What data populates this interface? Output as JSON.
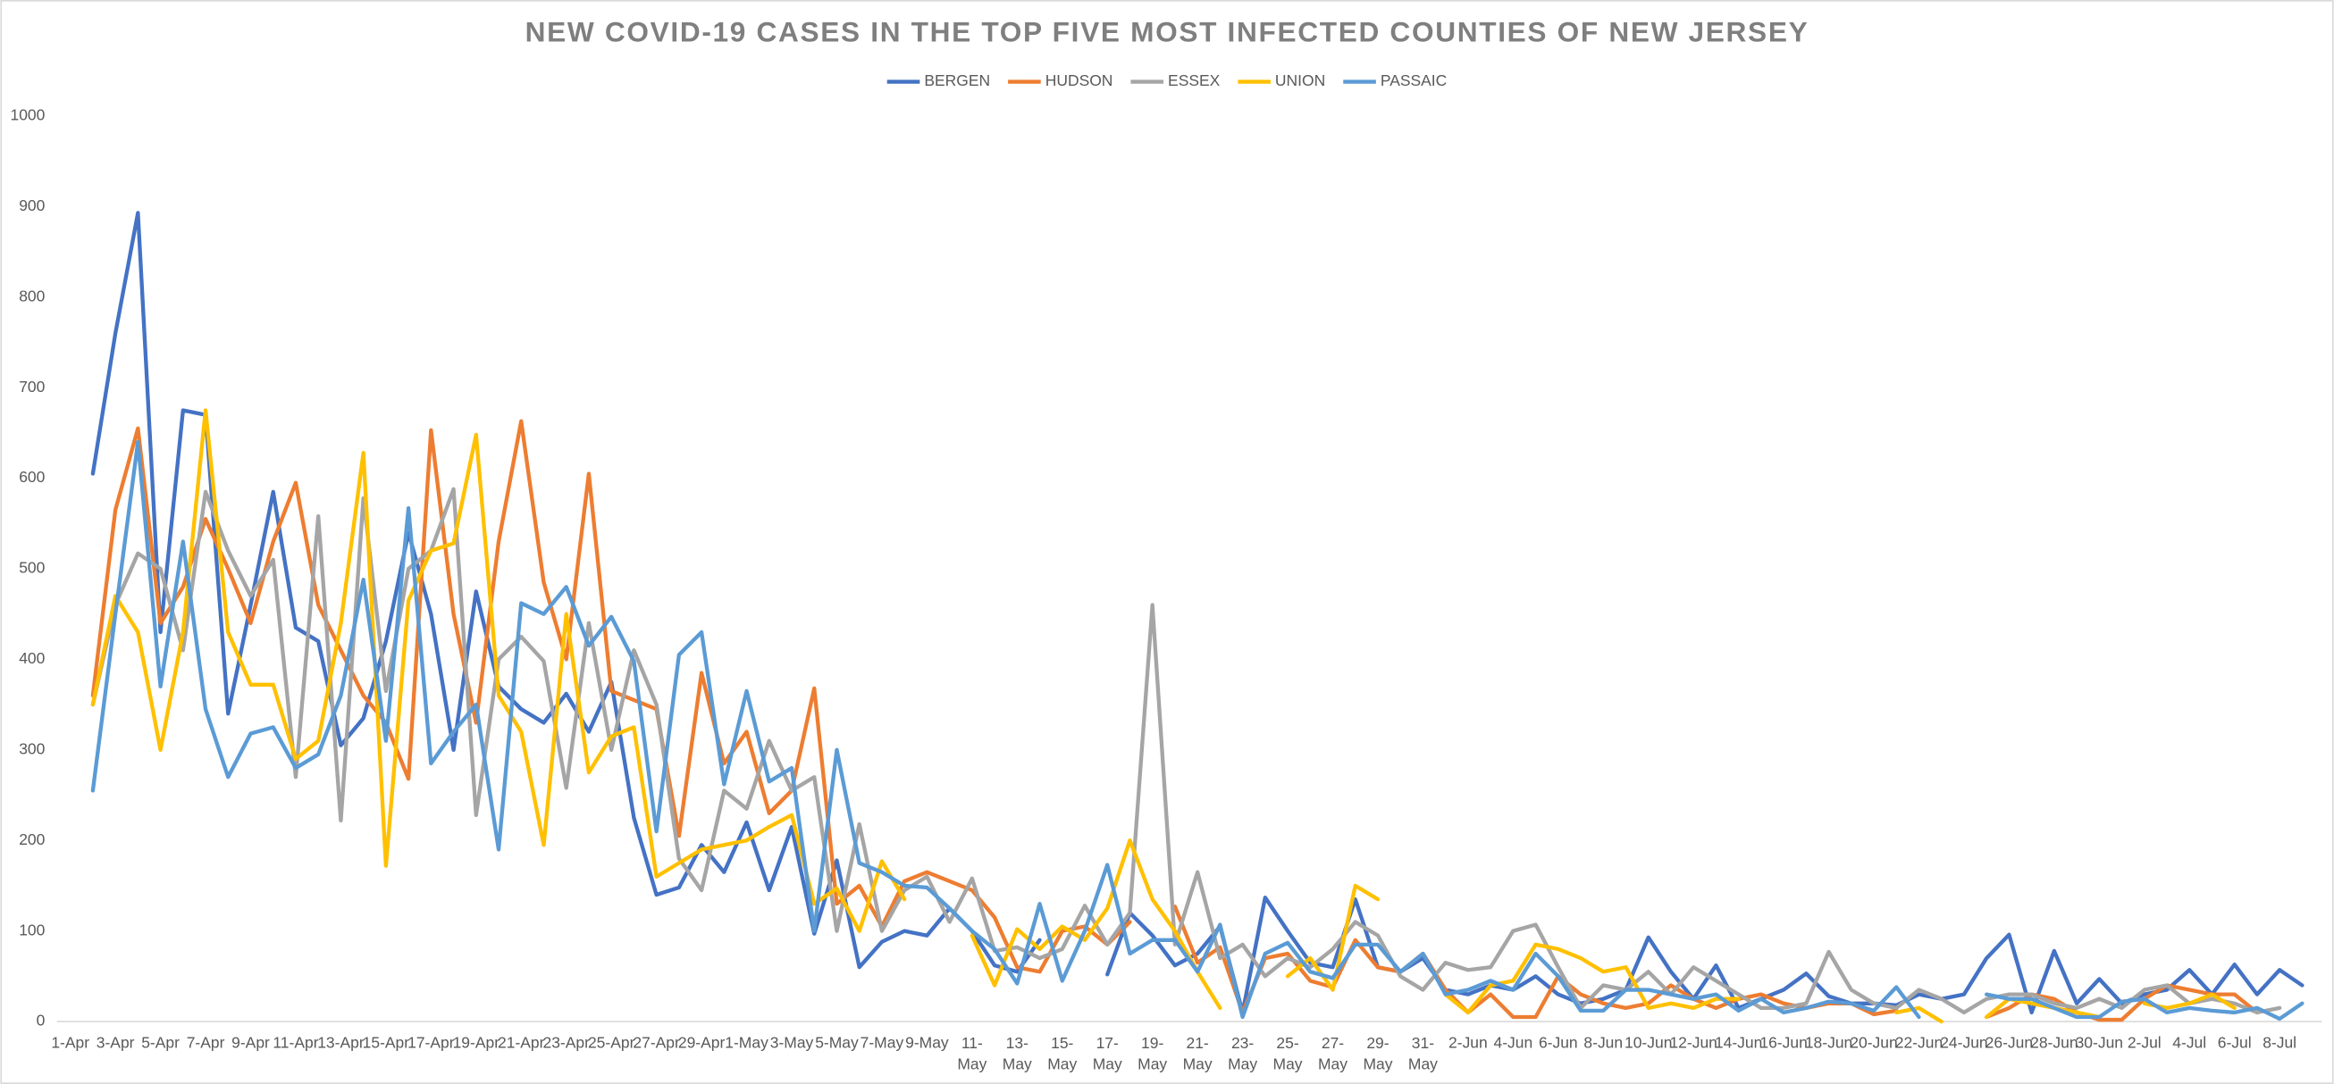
{
  "chart_data": {
    "type": "line",
    "title": "NEW COVID-19 CASES IN THE TOP FIVE MOST INFECTED COUNTIES OF NEW JERSEY",
    "categories": [
      "1-Apr",
      null,
      "3-Apr",
      null,
      "5-Apr",
      null,
      "7-Apr",
      null,
      "9-Apr",
      null,
      "11-Apr",
      null,
      "13-Apr",
      null,
      "15-Apr",
      null,
      "17-Apr",
      null,
      "19-Apr",
      null,
      "21-Apr",
      null,
      "23-Apr",
      null,
      "25-Apr",
      null,
      "27-Apr",
      null,
      "29-Apr",
      null,
      "1-May",
      null,
      "3-May",
      null,
      "5-May",
      null,
      "7-May",
      null,
      "9-May",
      null,
      "11-May",
      null,
      "13-May",
      null,
      "15-May",
      null,
      "17-May",
      null,
      "19-May",
      null,
      "21-May",
      null,
      "23-May",
      null,
      "25-May",
      null,
      "27-May",
      null,
      "29-May",
      null,
      "31-May",
      null,
      "2-Jun",
      null,
      "4-Jun",
      null,
      "6-Jun",
      null,
      "8-Jun",
      null,
      "10-Jun",
      null,
      "12-Jun",
      null,
      "14-Jun",
      null,
      "16-Jun",
      null,
      "18-Jun",
      null,
      "20-Jun",
      null,
      "22-Jun",
      null,
      "24-Jun",
      null,
      "26-Jun",
      null,
      "28-Jun",
      null,
      "30-Jun",
      null,
      "2-Jul",
      null,
      "4-Jul",
      null,
      "6-Jul",
      null,
      "8-Jul",
      null
    ],
    "series": [
      {
        "name": "BERGEN",
        "color": "#4472c4",
        "values": [
          null,
          605,
          760,
          893,
          430,
          675,
          670,
          340,
          460,
          585,
          435,
          420,
          305,
          335,
          420,
          540,
          450,
          300,
          475,
          370,
          345,
          330,
          362,
          320,
          375,
          225,
          140,
          148,
          195,
          165,
          220,
          145,
          215,
          97,
          178,
          60,
          88,
          100,
          95,
          125,
          100,
          62,
          55,
          90,
          null,
          null,
          52,
          120,
          95,
          62,
          75,
          105,
          10,
          137,
          100,
          65,
          60,
          135,
          60,
          55,
          70,
          35,
          30,
          40,
          35,
          50,
          30,
          20,
          25,
          35,
          93,
          55,
          25,
          62,
          15,
          25,
          35,
          53,
          28,
          20,
          20,
          18,
          30,
          25,
          30,
          70,
          96,
          10,
          78,
          20,
          47,
          20,
          30,
          35,
          57,
          30,
          63,
          30,
          57,
          40
        ]
      },
      {
        "name": "HUDSON",
        "color": "#ed7d31",
        "values": [
          null,
          360,
          565,
          655,
          440,
          480,
          555,
          500,
          440,
          530,
          595,
          460,
          410,
          360,
          330,
          268,
          653,
          450,
          330,
          530,
          663,
          485,
          400,
          605,
          365,
          355,
          345,
          205,
          385,
          285,
          320,
          230,
          255,
          368,
          130,
          150,
          105,
          155,
          165,
          155,
          145,
          115,
          60,
          55,
          100,
          105,
          85,
          110,
          null,
          127,
          65,
          82,
          10,
          70,
          75,
          45,
          38,
          90,
          60,
          55,
          75,
          35,
          10,
          30,
          5,
          5,
          50,
          30,
          20,
          15,
          20,
          40,
          25,
          15,
          25,
          30,
          20,
          15,
          20,
          20,
          8,
          12,
          null,
          null,
          null,
          5,
          15,
          30,
          25,
          10,
          2,
          2,
          25,
          40,
          35,
          30,
          30,
          10,
          null,
          null
        ]
      },
      {
        "name": "ESSEX",
        "color": "#a5a5a5",
        "values": [
          null,
          350,
          460,
          517,
          500,
          410,
          585,
          520,
          470,
          510,
          270,
          558,
          222,
          578,
          365,
          500,
          520,
          588,
          228,
          400,
          425,
          398,
          258,
          440,
          300,
          410,
          350,
          180,
          145,
          255,
          235,
          310,
          255,
          270,
          100,
          218,
          100,
          145,
          160,
          110,
          158,
          78,
          82,
          70,
          80,
          128,
          85,
          120,
          460,
          85,
          165,
          70,
          85,
          50,
          70,
          60,
          80,
          110,
          95,
          50,
          35,
          65,
          57,
          60,
          100,
          107,
          60,
          15,
          40,
          35,
          55,
          30,
          60,
          45,
          30,
          15,
          15,
          20,
          77,
          35,
          20,
          15,
          35,
          25,
          10,
          25,
          30,
          30,
          20,
          15,
          25,
          15,
          35,
          40,
          20,
          25,
          20,
          10,
          15,
          null
        ]
      },
      {
        "name": "UNION",
        "color": "#ffc000",
        "values": [
          null,
          350,
          470,
          430,
          300,
          430,
          675,
          430,
          372,
          372,
          290,
          310,
          440,
          628,
          172,
          465,
          520,
          528,
          648,
          360,
          320,
          195,
          450,
          275,
          315,
          325,
          160,
          175,
          190,
          195,
          200,
          215,
          228,
          130,
          147,
          100,
          177,
          135,
          null,
          null,
          95,
          40,
          102,
          80,
          105,
          90,
          125,
          200,
          135,
          100,
          55,
          15,
          null,
          null,
          50,
          70,
          35,
          150,
          135,
          null,
          null,
          30,
          10,
          40,
          45,
          85,
          80,
          70,
          55,
          60,
          15,
          20,
          15,
          25,
          25,
          null,
          null,
          null,
          null,
          null,
          null,
          10,
          15,
          0,
          null,
          5,
          25,
          20,
          15,
          10,
          5,
          null,
          20,
          15,
          20,
          30,
          15,
          null,
          null,
          null
        ]
      },
      {
        "name": "PASSAIC",
        "color": "#5b9bd5",
        "values": [
          null,
          255,
          450,
          640,
          370,
          530,
          345,
          270,
          318,
          325,
          280,
          295,
          360,
          488,
          310,
          567,
          285,
          320,
          350,
          190,
          462,
          450,
          480,
          415,
          447,
          398,
          210,
          405,
          430,
          262,
          365,
          265,
          280,
          100,
          300,
          175,
          165,
          150,
          148,
          125,
          100,
          80,
          42,
          130,
          45,
          100,
          173,
          75,
          90,
          90,
          55,
          107,
          5,
          75,
          87,
          55,
          48,
          85,
          85,
          55,
          75,
          30,
          35,
          45,
          35,
          75,
          50,
          12,
          12,
          35,
          35,
          30,
          25,
          30,
          12,
          25,
          10,
          15,
          22,
          20,
          12,
          38,
          5,
          null,
          null,
          30,
          25,
          25,
          15,
          5,
          5,
          22,
          25,
          10,
          15,
          12,
          10,
          15,
          3,
          20
        ]
      }
    ],
    "ylim": [
      0,
      1000
    ],
    "yticks": [
      0,
      100,
      200,
      300,
      400,
      500,
      600,
      700,
      800,
      900,
      1000
    ],
    "grid": false,
    "legend": "top"
  }
}
